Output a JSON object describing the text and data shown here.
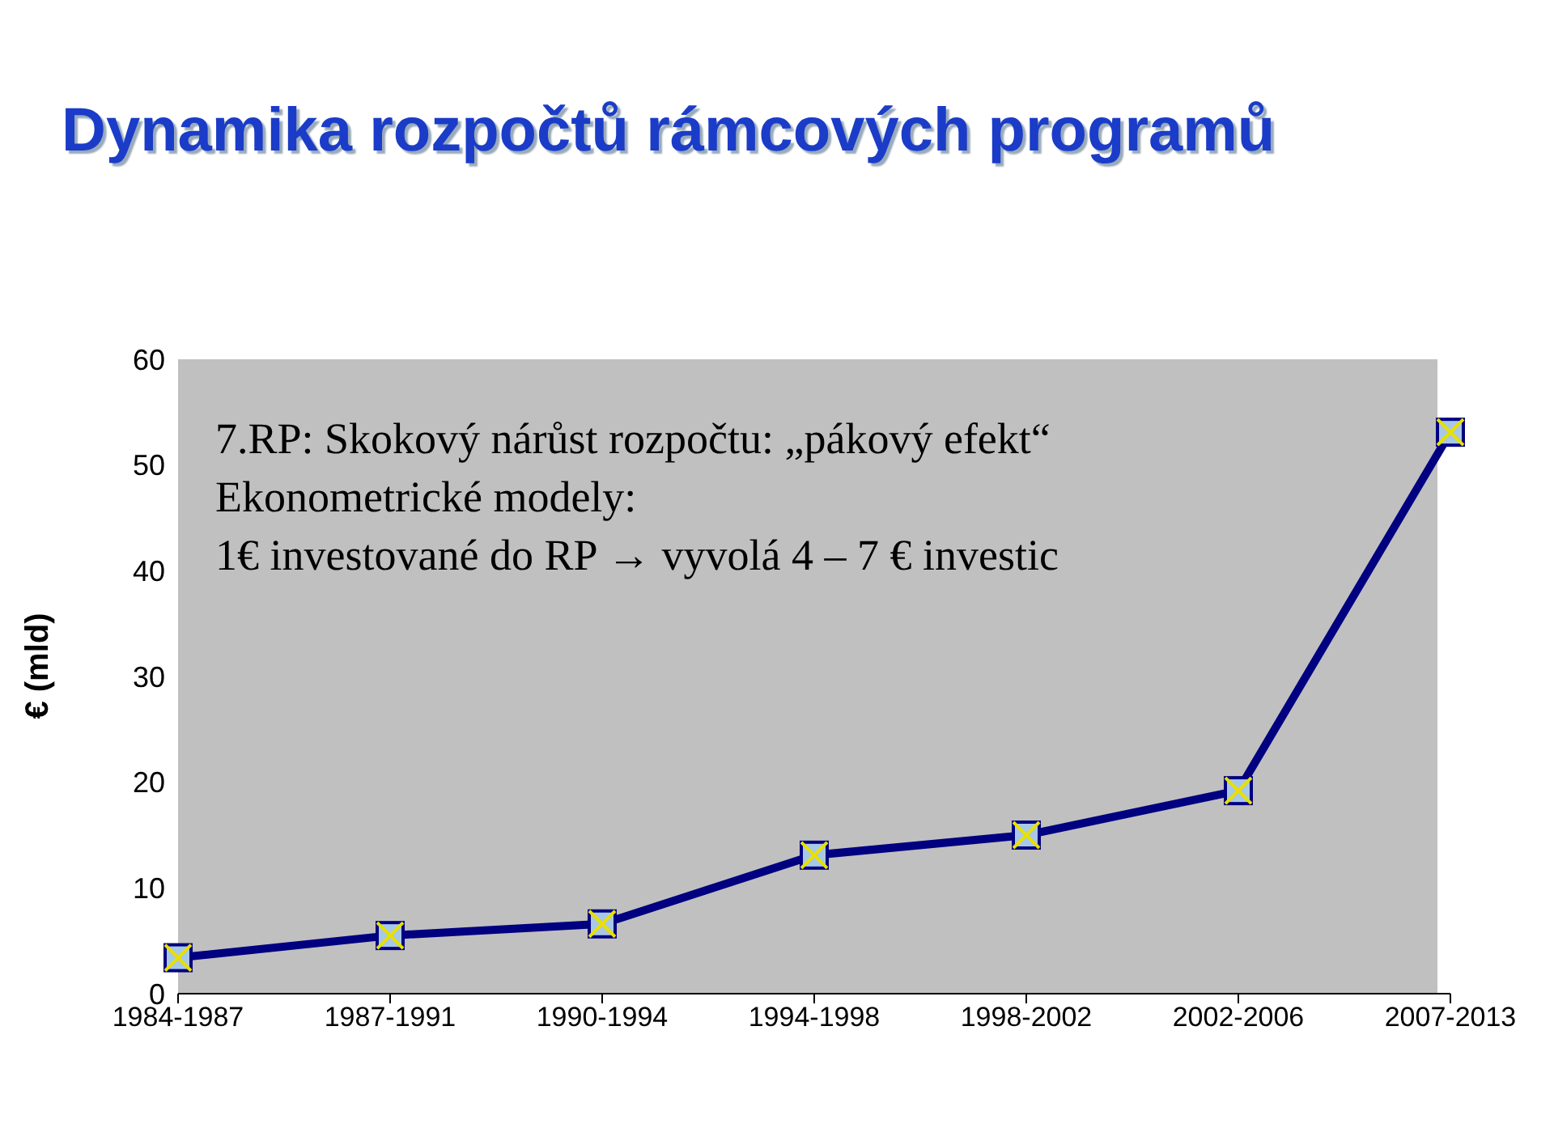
{
  "chart_data": {
    "type": "line",
    "title": "Dynamika rozpočtů rámcových programů",
    "ylabel": "€ (mld)",
    "categories": [
      "1984-1987",
      "1987-1991",
      "1990-1994",
      "1994-1998",
      "1998-2002",
      "2002-2006",
      "2007-2013"
    ],
    "series": [
      {
        "color": "#000080",
        "values": [
          3.4,
          5.5,
          6.6,
          13.1,
          15.0,
          19.2,
          53.1
        ]
      }
    ],
    "ylim": [
      0,
      60
    ],
    "yticks": [
      0,
      10,
      20,
      30,
      40,
      50,
      60
    ],
    "grid": false,
    "legend": false,
    "marker": "square",
    "line_style": "solid",
    "annotations": [
      "7.RP: Skokový nárůst rozpočtu: „pákový efekt“",
      "Ekonometrické modely:",
      "1€ investované do RP → vyvolá 4 – 7 € investic"
    ]
  }
}
